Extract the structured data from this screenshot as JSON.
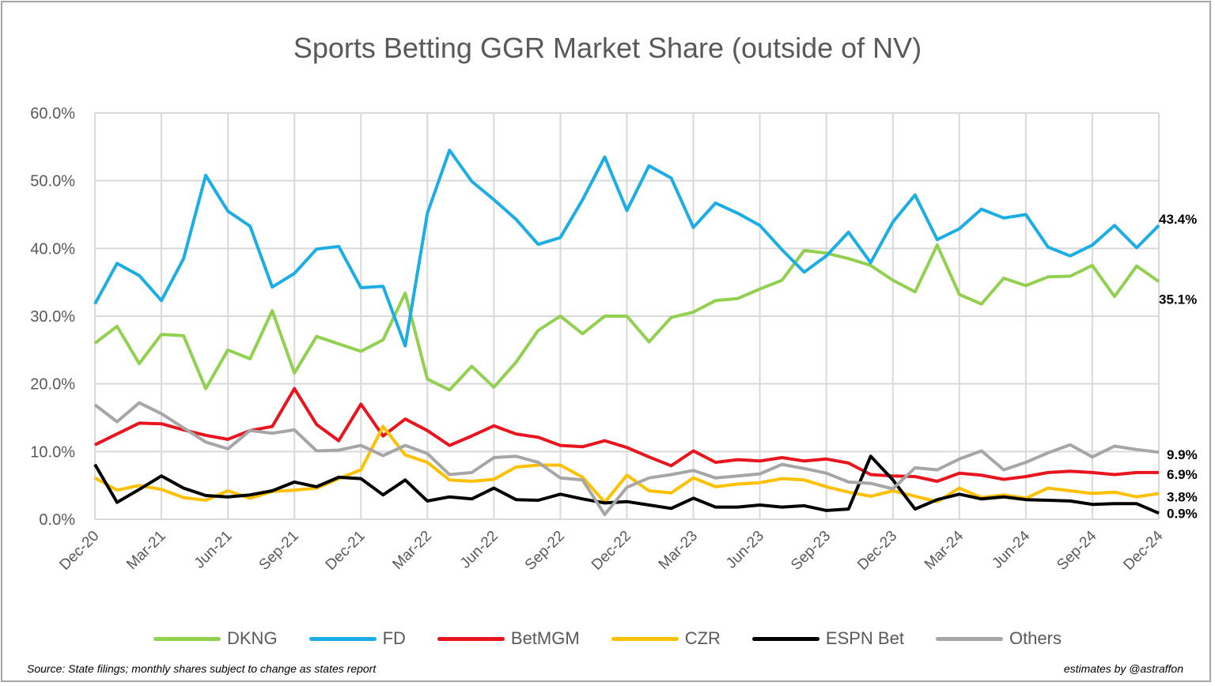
{
  "chart_data": {
    "type": "line",
    "title": "Sports Betting GGR Market Share (outside of NV)",
    "xlabel": "",
    "ylabel": "",
    "ylim": [
      0,
      60
    ],
    "yticks": [
      "0.0%",
      "10.0%",
      "20.0%",
      "30.0%",
      "40.0%",
      "50.0%",
      "60.0%"
    ],
    "xtick_labels": [
      "Dec-20",
      "Mar-21",
      "Jun-21",
      "Sep-21",
      "Dec-21",
      "Mar-22",
      "Jun-22",
      "Sep-22",
      "Dec-22",
      "Mar-23",
      "Jun-23",
      "Sep-23",
      "Dec-23",
      "Mar-24",
      "Jun-24",
      "Sep-24",
      "Dec-24"
    ],
    "grid": true,
    "legend_position": "bottom",
    "x": [
      "Dec-20",
      "Jan-21",
      "Feb-21",
      "Mar-21",
      "Apr-21",
      "May-21",
      "Jun-21",
      "Jul-21",
      "Aug-21",
      "Sep-21",
      "Oct-21",
      "Nov-21",
      "Dec-21",
      "Jan-22",
      "Feb-22",
      "Mar-22",
      "Apr-22",
      "May-22",
      "Jun-22",
      "Jul-22",
      "Aug-22",
      "Sep-22",
      "Oct-22",
      "Nov-22",
      "Dec-22",
      "Jan-23",
      "Feb-23",
      "Mar-23",
      "Apr-23",
      "May-23",
      "Jun-23",
      "Jul-23",
      "Aug-23",
      "Sep-23",
      "Oct-23",
      "Nov-23",
      "Dec-23",
      "Jan-24",
      "Feb-24",
      "Mar-24",
      "Apr-24",
      "May-24",
      "Jun-24",
      "Jul-24",
      "Aug-24",
      "Sep-24",
      "Oct-24",
      "Nov-24",
      "Dec-24"
    ],
    "series": [
      {
        "name": "DKNG",
        "color": "#92d050",
        "values": [
          26.0,
          28.5,
          23.0,
          27.3,
          27.1,
          19.3,
          25.0,
          23.7,
          30.8,
          21.6,
          27.0,
          25.9,
          24.8,
          26.5,
          33.4,
          20.7,
          19.1,
          22.6,
          19.5,
          23.2,
          27.9,
          30.0,
          27.4,
          30.0,
          30.0,
          26.2,
          29.8,
          30.6,
          32.3,
          32.6,
          34.0,
          35.3,
          39.7,
          39.3,
          38.5,
          37.5,
          35.3,
          33.6,
          40.5,
          33.2,
          31.8,
          35.6,
          34.5,
          35.8,
          35.9,
          37.5,
          32.9,
          37.4,
          35.1
        ]
      },
      {
        "name": "FD",
        "color": "#1cade4",
        "values": [
          31.8,
          37.8,
          36.0,
          32.3,
          38.5,
          50.8,
          45.5,
          43.3,
          34.3,
          36.3,
          39.9,
          40.3,
          34.2,
          34.4,
          25.6,
          45.2,
          54.5,
          49.9,
          47.2,
          44.3,
          40.6,
          41.6,
          47.2,
          53.5,
          45.6,
          52.2,
          50.4,
          43.1,
          46.7,
          45.2,
          43.4,
          39.8,
          36.5,
          38.9,
          42.4,
          37.9,
          43.9,
          47.9,
          41.3,
          42.9,
          45.8,
          44.5,
          45.0,
          40.2,
          38.9,
          40.5,
          43.4,
          40.1,
          43.4
        ]
      },
      {
        "name": "BetMGM",
        "color": "#e8141e",
        "values": [
          11.0,
          12.6,
          14.2,
          14.1,
          13.2,
          12.4,
          11.8,
          13.1,
          13.7,
          19.3,
          14.0,
          11.6,
          17.0,
          12.3,
          14.8,
          13.1,
          10.9,
          12.3,
          13.8,
          12.6,
          12.1,
          10.9,
          10.7,
          11.6,
          10.6,
          9.2,
          7.9,
          10.1,
          8.4,
          8.8,
          8.6,
          9.1,
          8.6,
          8.9,
          8.3,
          6.6,
          6.4,
          6.3,
          5.6,
          6.8,
          6.5,
          5.9,
          6.3,
          6.9,
          7.1,
          6.9,
          6.6,
          6.9,
          6.9
        ]
      },
      {
        "name": "CZR",
        "color": "#ffc000",
        "values": [
          6.1,
          4.3,
          5.0,
          4.4,
          3.2,
          2.8,
          4.2,
          3.1,
          4.1,
          4.3,
          4.6,
          6.0,
          7.3,
          13.7,
          9.5,
          8.4,
          5.8,
          5.6,
          5.9,
          7.7,
          8.0,
          8.0,
          6.2,
          2.5,
          6.5,
          4.2,
          3.9,
          6.1,
          4.8,
          5.2,
          5.4,
          6.0,
          5.8,
          4.8,
          4.0,
          3.4,
          4.2,
          3.4,
          2.6,
          4.6,
          3.2,
          3.6,
          3.1,
          4.6,
          4.2,
          3.8,
          4.0,
          3.3,
          3.8
        ]
      },
      {
        "name": "ESPN Bet",
        "color": "#000000",
        "values": [
          8.1,
          2.5,
          4.4,
          6.4,
          4.6,
          3.5,
          3.3,
          3.6,
          4.2,
          5.5,
          4.8,
          6.2,
          6.0,
          3.6,
          5.8,
          2.7,
          3.3,
          3.0,
          4.6,
          2.9,
          2.8,
          3.7,
          3.0,
          2.4,
          2.6,
          2.1,
          1.6,
          3.1,
          1.8,
          1.8,
          2.1,
          1.8,
          2.0,
          1.3,
          1.5,
          9.3,
          5.8,
          1.5,
          2.9,
          3.7,
          3.0,
          3.3,
          2.9,
          2.8,
          2.7,
          2.2,
          2.3,
          2.3,
          0.9
        ]
      },
      {
        "name": "Others",
        "color": "#a6a6a6",
        "values": [
          16.9,
          14.4,
          17.2,
          15.6,
          13.5,
          11.4,
          10.4,
          13.1,
          12.7,
          13.2,
          10.1,
          10.2,
          10.9,
          9.4,
          10.9,
          9.7,
          6.6,
          6.9,
          9.1,
          9.3,
          8.4,
          6.1,
          5.8,
          0.7,
          4.7,
          6.1,
          6.6,
          7.2,
          6.1,
          6.4,
          6.7,
          8.1,
          7.5,
          6.8,
          5.5,
          5.3,
          4.5,
          7.6,
          7.3,
          8.9,
          10.1,
          7.3,
          8.4,
          9.8,
          11.0,
          9.2,
          10.8,
          10.3,
          9.9
        ]
      }
    ],
    "end_labels": [
      {
        "series": "FD",
        "text": "43.4%"
      },
      {
        "series": "DKNG",
        "text": "35.1%"
      },
      {
        "series": "Others",
        "text": "9.9%"
      },
      {
        "series": "BetMGM",
        "text": "6.9%"
      },
      {
        "series": "CZR",
        "text": "3.8%"
      },
      {
        "series": "ESPN Bet",
        "text": "0.9%"
      }
    ]
  },
  "legend": [
    {
      "label": "DKNG",
      "color": "#92d050"
    },
    {
      "label": "FD",
      "color": "#1cade4"
    },
    {
      "label": "BetMGM",
      "color": "#e8141e"
    },
    {
      "label": "CZR",
      "color": "#ffc000"
    },
    {
      "label": "ESPN Bet",
      "color": "#000000"
    },
    {
      "label": "Others",
      "color": "#a6a6a6"
    }
  ],
  "footer": {
    "source": "Source: State filings; monthly shares subject to change as states report",
    "credit": "estimates by @astraffon"
  }
}
